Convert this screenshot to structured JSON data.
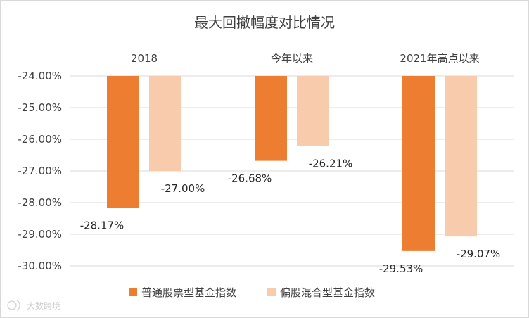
{
  "chart_data": {
    "type": "bar",
    "title": "最大回撤幅度对比情况",
    "categories": [
      "2018",
      "今年以来",
      "2021年高点以来"
    ],
    "series": [
      {
        "name": "普通股票型基金指数",
        "values": [
          -28.17,
          -26.68,
          -29.53
        ],
        "labels": [
          "-28.17%",
          "-26.68%",
          "-29.53%"
        ],
        "color": "#ED7D31"
      },
      {
        "name": "偏股混合型基金指数",
        "values": [
          -27.0,
          -26.21,
          -29.07
        ],
        "labels": [
          "-27.00%",
          "-26.21%",
          "-29.07%"
        ],
        "color": "#F8CBAD"
      }
    ],
    "ylim": [
      -30,
      -24
    ],
    "ytick_labels": [
      "-24.00%",
      "-25.00%",
      "-26.00%",
      "-27.00%",
      "-28.00%",
      "-29.00%",
      "-30.00%"
    ],
    "xaxis_position": "top",
    "legend": "bottom",
    "grid": true,
    "gridline_color": "#d9d9d9"
  },
  "watermark": "大数跨境"
}
